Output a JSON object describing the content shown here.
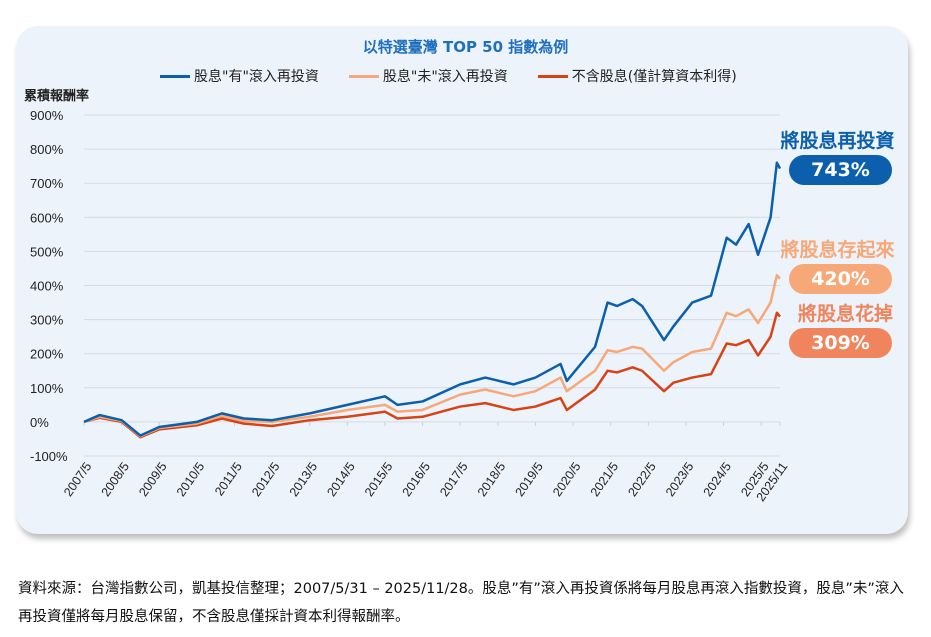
{
  "chart_data": {
    "type": "line",
    "title": "以特選臺灣 TOP 50 指數為例",
    "ylabel": "累積報酬率",
    "ylim": [
      -100,
      900
    ],
    "yticks": [
      "-100%",
      "0%",
      "100%",
      "200%",
      "300%",
      "400%",
      "500%",
      "600%",
      "700%",
      "800%",
      "900%"
    ],
    "yticks_values": [
      -100,
      0,
      100,
      200,
      300,
      400,
      500,
      600,
      700,
      800,
      900
    ],
    "xticks": [
      "2007/5",
      "2008/5",
      "2009/5",
      "2010/5",
      "2011/5",
      "2012/5",
      "2013/5",
      "2014/5",
      "2015/5",
      "2016/5",
      "2017/5",
      "2018/5",
      "2019/5",
      "2020/5",
      "2021/5",
      "2022/5",
      "2023/5",
      "2024/5",
      "2025/5",
      "2025/11"
    ],
    "grid": true,
    "legend_placement": "top",
    "series": [
      {
        "name": "股息\"有\"滾入再投資",
        "color": "#0b5fad",
        "points": [
          [
            "2007-05",
            0
          ],
          [
            "2007-10",
            20
          ],
          [
            "2008-05",
            5
          ],
          [
            "2008-11",
            -40
          ],
          [
            "2009-05",
            -15
          ],
          [
            "2010-05",
            0
          ],
          [
            "2011-01",
            25
          ],
          [
            "2011-08",
            10
          ],
          [
            "2012-05",
            5
          ],
          [
            "2013-05",
            25
          ],
          [
            "2014-05",
            50
          ],
          [
            "2015-05",
            75
          ],
          [
            "2015-09",
            50
          ],
          [
            "2016-05",
            60
          ],
          [
            "2017-05",
            110
          ],
          [
            "2018-01",
            130
          ],
          [
            "2018-10",
            110
          ],
          [
            "2019-05",
            130
          ],
          [
            "2020-01",
            170
          ],
          [
            "2020-03",
            120
          ],
          [
            "2020-12",
            220
          ],
          [
            "2021-04",
            350
          ],
          [
            "2021-07",
            340
          ],
          [
            "2021-12",
            360
          ],
          [
            "2022-03",
            340
          ],
          [
            "2022-10",
            240
          ],
          [
            "2023-01",
            280
          ],
          [
            "2023-07",
            350
          ],
          [
            "2024-01",
            370
          ],
          [
            "2024-06",
            540
          ],
          [
            "2024-09",
            520
          ],
          [
            "2025-01",
            580
          ],
          [
            "2025-04",
            490
          ],
          [
            "2025-08",
            600
          ],
          [
            "2025-10",
            760
          ],
          [
            "2025-11",
            743
          ]
        ]
      },
      {
        "name": "股息\"未\"滾入再投資",
        "color": "#f7a878",
        "points": [
          [
            "2007-05",
            0
          ],
          [
            "2007-10",
            15
          ],
          [
            "2008-05",
            3
          ],
          [
            "2008-11",
            -42
          ],
          [
            "2009-05",
            -18
          ],
          [
            "2010-05",
            -5
          ],
          [
            "2011-01",
            18
          ],
          [
            "2011-08",
            3
          ],
          [
            "2012-05",
            0
          ],
          [
            "2013-05",
            15
          ],
          [
            "2014-05",
            35
          ],
          [
            "2015-05",
            50
          ],
          [
            "2015-09",
            30
          ],
          [
            "2016-05",
            35
          ],
          [
            "2017-05",
            80
          ],
          [
            "2018-01",
            95
          ],
          [
            "2018-10",
            75
          ],
          [
            "2019-05",
            90
          ],
          [
            "2020-01",
            130
          ],
          [
            "2020-03",
            90
          ],
          [
            "2020-12",
            150
          ],
          [
            "2021-04",
            210
          ],
          [
            "2021-07",
            205
          ],
          [
            "2021-12",
            220
          ],
          [
            "2022-03",
            215
          ],
          [
            "2022-10",
            150
          ],
          [
            "2023-01",
            175
          ],
          [
            "2023-07",
            205
          ],
          [
            "2024-01",
            215
          ],
          [
            "2024-06",
            320
          ],
          [
            "2024-09",
            310
          ],
          [
            "2025-01",
            330
          ],
          [
            "2025-04",
            290
          ],
          [
            "2025-08",
            350
          ],
          [
            "2025-10",
            430
          ],
          [
            "2025-11",
            420
          ]
        ]
      },
      {
        "name": "不含股息(僅計算資本利得)",
        "color": "#d84315",
        "points": [
          [
            "2007-05",
            0
          ],
          [
            "2007-10",
            12
          ],
          [
            "2008-05",
            0
          ],
          [
            "2008-11",
            -45
          ],
          [
            "2009-05",
            -22
          ],
          [
            "2010-05",
            -10
          ],
          [
            "2011-01",
            10
          ],
          [
            "2011-08",
            -5
          ],
          [
            "2012-05",
            -12
          ],
          [
            "2013-05",
            5
          ],
          [
            "2014-05",
            15
          ],
          [
            "2015-05",
            30
          ],
          [
            "2015-09",
            10
          ],
          [
            "2016-05",
            15
          ],
          [
            "2017-05",
            45
          ],
          [
            "2018-01",
            55
          ],
          [
            "2018-10",
            35
          ],
          [
            "2019-05",
            45
          ],
          [
            "2020-01",
            70
          ],
          [
            "2020-03",
            35
          ],
          [
            "2020-12",
            95
          ],
          [
            "2021-04",
            150
          ],
          [
            "2021-07",
            145
          ],
          [
            "2021-12",
            160
          ],
          [
            "2022-03",
            150
          ],
          [
            "2022-10",
            90
          ],
          [
            "2023-01",
            115
          ],
          [
            "2023-07",
            130
          ],
          [
            "2024-01",
            140
          ],
          [
            "2024-06",
            230
          ],
          [
            "2024-09",
            225
          ],
          [
            "2025-01",
            240
          ],
          [
            "2025-04",
            195
          ],
          [
            "2025-08",
            250
          ],
          [
            "2025-10",
            320
          ],
          [
            "2025-11",
            309
          ]
        ]
      }
    ],
    "annotations": [
      {
        "label": "將股息再投資",
        "value": "743%",
        "color": "#0b5fad"
      },
      {
        "label": "將股息存起來",
        "value": "420%",
        "color": "#f7a878"
      },
      {
        "label": "將股息花掉",
        "value": "309%",
        "color": "#f0845c"
      }
    ]
  },
  "note": "資料來源：台灣指數公司，凱基投信整理；2007/5/31 – 2025/11/28。股息”有”滾入再投資係將每月股息再滾入指數投資，股息”未”滾入再投資僅將每月股息保留，不含股息僅採計資本利得報酬率。"
}
